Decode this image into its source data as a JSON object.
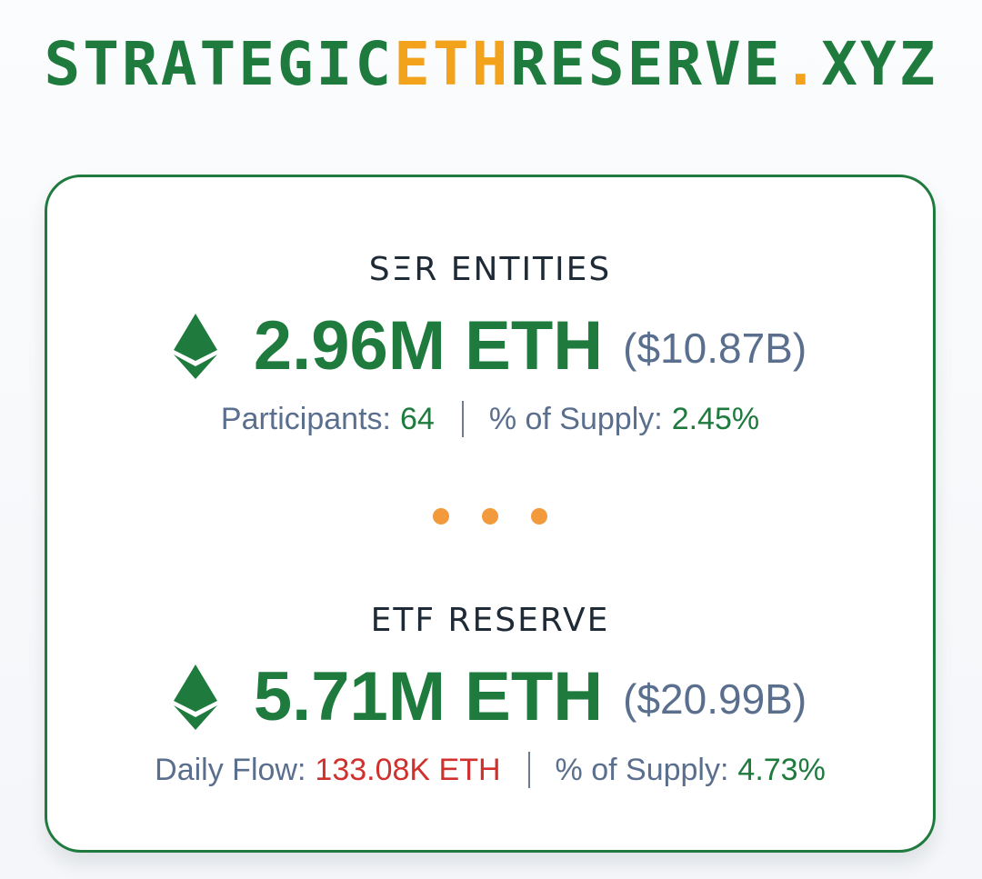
{
  "header": {
    "logo": {
      "part1": "STRATEGIC",
      "part2": "ETH",
      "part3": "RESERVE",
      "part4": ".",
      "part5": "XYZ"
    }
  },
  "colors": {
    "brand_green": "#1e7a3d",
    "accent_orange": "#f2a21b",
    "dot_orange": "#f39a3d",
    "muted_blue": "#5a6f8e",
    "negative_red": "#d0312d"
  },
  "ser": {
    "title": "SΞR ENTITIES",
    "icon": "ethereum-icon",
    "amount": "2.96M ETH",
    "usd": "($10.87B)",
    "participants_label": "Participants:",
    "participants_value": "64",
    "supply_label": "% of Supply:",
    "supply_value": "2.45%"
  },
  "etf": {
    "title": "ETF RESERVE",
    "icon": "ethereum-icon",
    "amount": "5.71M ETH",
    "usd": "($20.99B)",
    "flow_label": "Daily Flow:",
    "flow_value": "133.08K ETH",
    "supply_label": "% of Supply:",
    "supply_value": "4.73%"
  }
}
